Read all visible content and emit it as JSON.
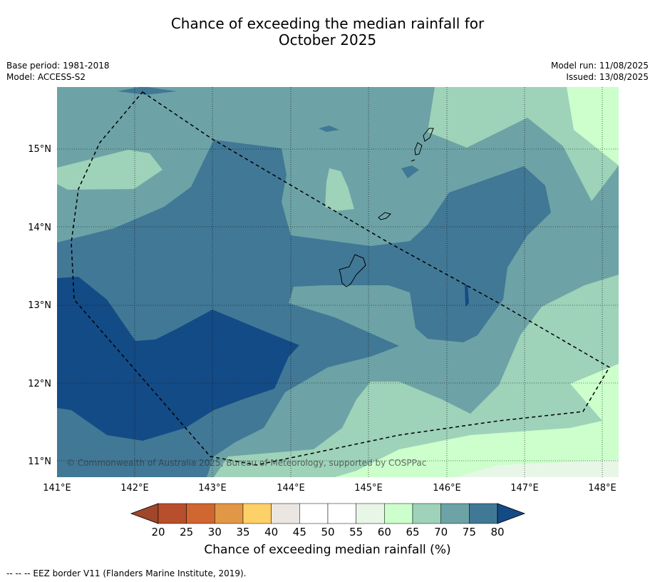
{
  "title": {
    "line1": "Chance of exceeding the median rainfall for",
    "line2": "October 2025"
  },
  "meta": {
    "base_period": "Base period: 1981-2018",
    "model": "Model: ACCESS-S2",
    "model_run": "Model run: 11/08/2025",
    "issued": "Issued: 13/08/2025"
  },
  "map": {
    "lat_labels": [
      "15°N",
      "14°N",
      "13°N",
      "12°N",
      "11°N"
    ],
    "lon_labels": [
      "141°E",
      "142°E",
      "143°E",
      "144°E",
      "145°E",
      "146°E",
      "147°E",
      "148°E"
    ],
    "copyright": "© Commonwealth of Australia 2025, Bureau of Meteorology, supported by COSPPac",
    "gridlines": true,
    "border_style": "dashed"
  },
  "colorbar": {
    "ticks": [
      "20",
      "25",
      "30",
      "35",
      "40",
      "45",
      "50",
      "55",
      "60",
      "65",
      "70",
      "75",
      "80"
    ],
    "colors": [
      "#a0462a",
      "#b84f2c",
      "#d06630",
      "#e29746",
      "#fdd068",
      "#ebe6e1",
      "#ffffff",
      "#ffffff",
      "#e8f6e8",
      "#ccffcc",
      "#9ed2b9",
      "#6da3a6",
      "#417896",
      "#134b86"
    ],
    "title": "Chance of exceeding median rainfall (%)"
  },
  "footnote": "--  --  -- EEZ border V11 (Flanders Marine Institute, 2019)."
}
